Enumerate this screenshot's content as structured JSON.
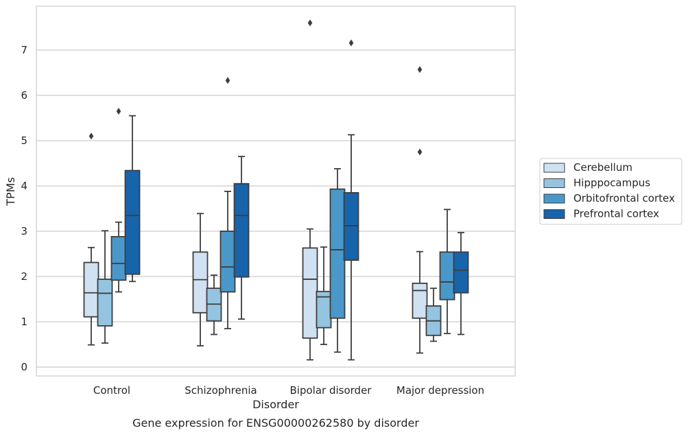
{
  "chart_data": {
    "type": "box",
    "caption": "Gene expression for ENSG00000262580 by disorder",
    "xlabel": "Disorder",
    "ylabel": "TPMs",
    "ylim": [
      -0.2,
      7.95
    ],
    "yticks": [
      0,
      1,
      2,
      3,
      4,
      5,
      6,
      7
    ],
    "grid": "horizontal",
    "legend_position": "right",
    "categories": [
      "Control",
      "Schizophrenia",
      "Bipolar disorder",
      "Major depression"
    ],
    "series": [
      {
        "name": "Cerebellum",
        "color": "#d0e1f2",
        "boxes": [
          {
            "whislo": 0.49,
            "q1": 1.11,
            "med": 1.64,
            "q3": 2.31,
            "whishi": 2.64,
            "fliers": [
              5.1
            ]
          },
          {
            "whislo": 0.47,
            "q1": 1.2,
            "med": 1.93,
            "q3": 2.54,
            "whishi": 3.39,
            "fliers": []
          },
          {
            "whislo": 0.16,
            "q1": 0.64,
            "med": 1.94,
            "q3": 2.63,
            "whishi": 3.05,
            "fliers": [
              7.6
            ]
          },
          {
            "whislo": 0.31,
            "q1": 1.08,
            "med": 1.69,
            "q3": 1.85,
            "whishi": 2.55,
            "fliers": [
              4.75,
              6.57
            ]
          }
        ]
      },
      {
        "name": "Hipppocampus",
        "color": "#94c4df",
        "boxes": [
          {
            "whislo": 0.53,
            "q1": 0.91,
            "med": 1.63,
            "q3": 1.94,
            "whishi": 3.01,
            "fliers": []
          },
          {
            "whislo": 0.72,
            "q1": 1.02,
            "med": 1.39,
            "q3": 1.74,
            "whishi": 2.03,
            "fliers": []
          },
          {
            "whislo": 0.5,
            "q1": 0.87,
            "med": 1.55,
            "q3": 1.67,
            "whishi": 2.65,
            "fliers": []
          },
          {
            "whislo": 0.57,
            "q1": 0.7,
            "med": 1.02,
            "q3": 1.35,
            "whishi": 1.74,
            "fliers": []
          }
        ]
      },
      {
        "name": "Orbitofrontal cortex",
        "color": "#4a98c9",
        "boxes": [
          {
            "whislo": 1.66,
            "q1": 1.92,
            "med": 2.29,
            "q3": 2.88,
            "whishi": 3.2,
            "fliers": [
              5.65
            ]
          },
          {
            "whislo": 0.85,
            "q1": 1.66,
            "med": 2.21,
            "q3": 3.0,
            "whishi": 3.88,
            "fliers": [
              6.33
            ]
          },
          {
            "whislo": 0.33,
            "q1": 1.08,
            "med": 2.59,
            "q3": 3.93,
            "whishi": 4.38,
            "fliers": []
          },
          {
            "whislo": 0.74,
            "q1": 1.49,
            "med": 1.88,
            "q3": 2.54,
            "whishi": 3.48,
            "fliers": []
          }
        ]
      },
      {
        "name": "Prefrontal cortex",
        "color": "#1764ab",
        "boxes": [
          {
            "whislo": 1.89,
            "q1": 2.05,
            "med": 3.35,
            "q3": 4.34,
            "whishi": 5.55,
            "fliers": []
          },
          {
            "whislo": 1.06,
            "q1": 1.99,
            "med": 3.35,
            "q3": 4.05,
            "whishi": 4.65,
            "fliers": []
          },
          {
            "whislo": 0.16,
            "q1": 2.36,
            "med": 3.12,
            "q3": 3.85,
            "whishi": 5.13,
            "fliers": [
              7.16
            ]
          },
          {
            "whislo": 0.72,
            "q1": 1.64,
            "med": 2.14,
            "q3": 2.54,
            "whishi": 2.97,
            "fliers": []
          }
        ]
      }
    ]
  }
}
